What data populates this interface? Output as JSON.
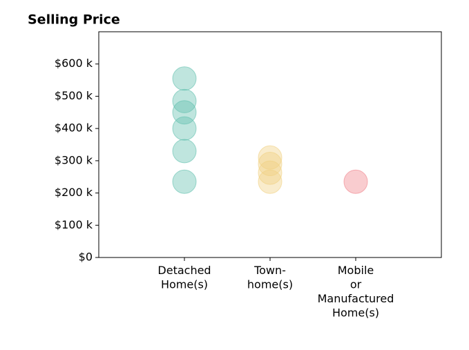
{
  "chart_data": {
    "type": "strip",
    "title": "Selling Price",
    "categories": [
      [
        "Detached",
        "Home(s)"
      ],
      [
        "Town-",
        "home(s)"
      ],
      [
        "Mobile",
        "or",
        "Manufactured",
        "Home(s)"
      ]
    ],
    "values": [
      [
        555000,
        485000,
        450000,
        400000,
        330000,
        235000
      ],
      [
        310000,
        290000,
        263000,
        235000
      ],
      [
        235000
      ]
    ],
    "colors": [
      "#5fbfad",
      "#f0d080",
      "#f08088"
    ],
    "ylim": [
      0,
      700000
    ],
    "yticks": [
      {
        "value": 0,
        "label": "$0"
      },
      {
        "value": 100000,
        "label": "$100 k"
      },
      {
        "value": 200000,
        "label": "$200 k"
      },
      {
        "value": 300000,
        "label": "$300 k"
      },
      {
        "value": 400000,
        "label": "$400 k"
      },
      {
        "value": 500000,
        "label": "$500 k"
      },
      {
        "value": 600000,
        "label": "$600 k"
      }
    ]
  }
}
